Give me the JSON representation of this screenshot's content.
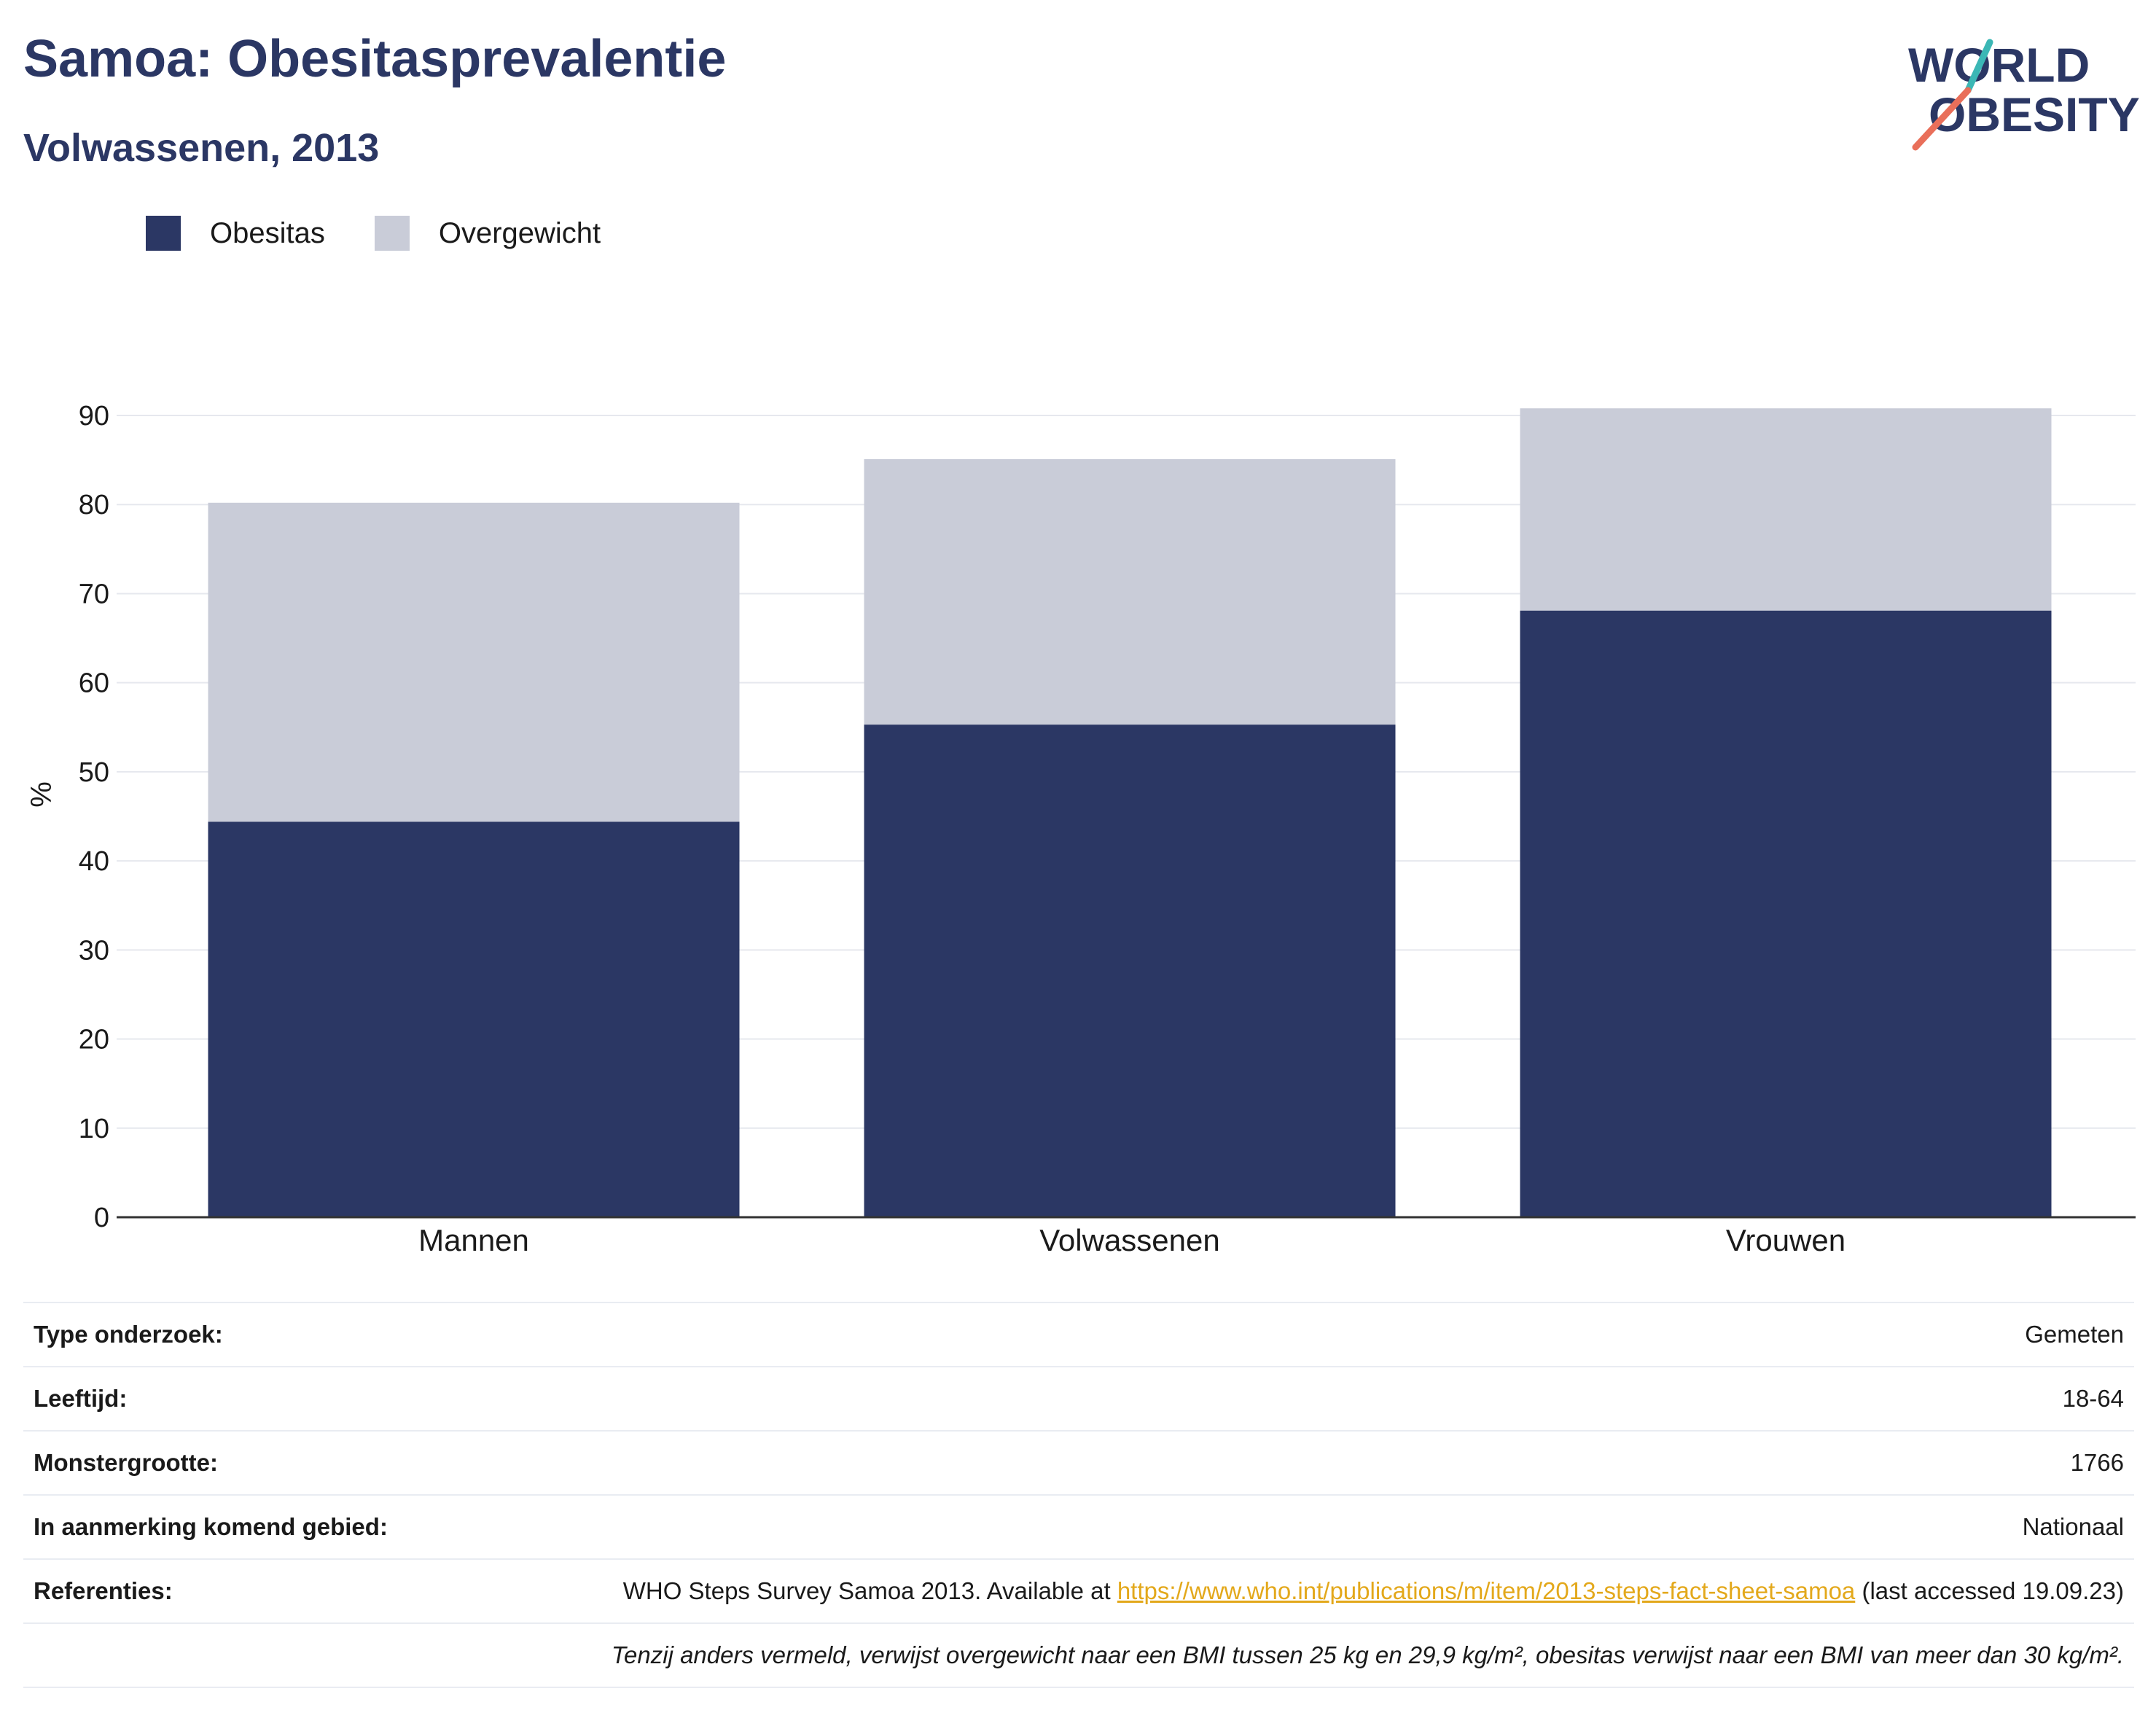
{
  "header": {
    "title": "Samoa: Obesitasprevalentie",
    "subtitle": "Volwassenen, 2013"
  },
  "logo": {
    "line1": "WORLD",
    "line2": "OBESITY"
  },
  "legend": {
    "items": [
      {
        "label": "Obesitas",
        "color": "#2b3764"
      },
      {
        "label": "Overgewicht",
        "color": "#c9ccd8"
      }
    ]
  },
  "chart_data": {
    "type": "bar",
    "stacked": true,
    "categories": [
      "Mannen",
      "Volwassenen",
      "Vrouwen"
    ],
    "series": [
      {
        "name": "Obesitas",
        "values": [
          44.4,
          55.3,
          68.1
        ],
        "color": "#2b3764"
      },
      {
        "name": "Overgewicht",
        "values": [
          35.8,
          29.8,
          22.7
        ],
        "color": "#c9ccd8"
      }
    ],
    "ylabel": "%",
    "ylim": [
      0,
      90
    ],
    "yticks": [
      0,
      10,
      20,
      30,
      40,
      50,
      60,
      70,
      80,
      90
    ],
    "grid": true,
    "legend_position": "top-left"
  },
  "info": {
    "rows": [
      {
        "key": "Type onderzoek:",
        "value": "Gemeten"
      },
      {
        "key": "Leeftijd:",
        "value": "18-64"
      },
      {
        "key": "Monstergrootte:",
        "value": "1766"
      },
      {
        "key": "In aanmerking komend gebied:",
        "value": "Nationaal"
      }
    ],
    "references": {
      "key": "Referenties:",
      "text_before": "WHO Steps Survey Samoa 2013. Available at ",
      "link": "https://www.who.int/publications/m/item/2013-steps-fact-sheet-samoa",
      "text_after": " (last accessed 19.09.23)"
    },
    "note": "Tenzij anders vermeld, verwijst overgewicht naar een BMI tussen 25 kg en 29,9 kg/m², obesitas verwijst naar een BMI van meer dan 30 kg/m²."
  }
}
